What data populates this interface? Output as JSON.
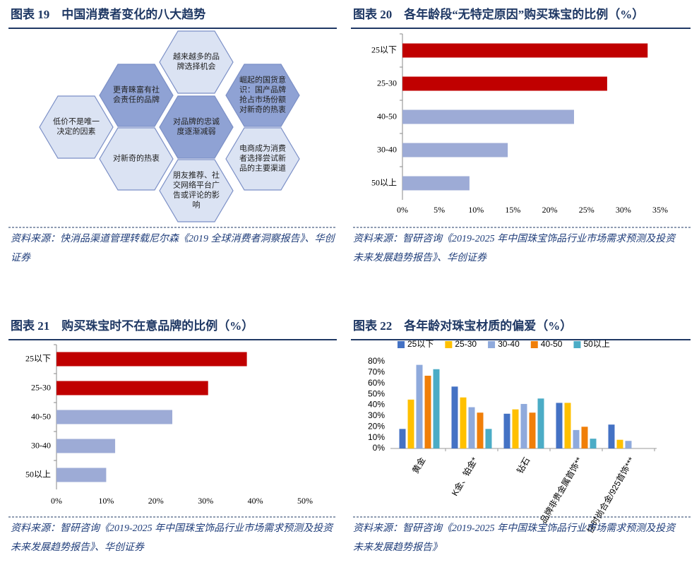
{
  "figure19": {
    "title": "图表 19　中国消费者变化的八大趋势",
    "nodes": [
      {
        "lines": [
          "越来越多的品",
          "牌选择机会"
        ]
      },
      {
        "lines": [
          "更青睐富有社",
          "会责任的品牌"
        ]
      },
      {
        "lines": [
          "崛起的国货意",
          "识：国产品牌",
          "抢占市场份额",
          "对新奇的热衷"
        ]
      },
      {
        "lines": [
          "低价不是唯一",
          "决定的因素"
        ]
      },
      {
        "lines": [
          "对品牌的忠诚",
          "度逐渐减弱"
        ]
      },
      {
        "lines": [
          "对新奇的热衷"
        ]
      },
      {
        "lines": [
          "电商成为消费",
          "者选择尝试新",
          "品的主要渠道"
        ]
      },
      {
        "lines": [
          "朋友推荐、社",
          "交网络平台广",
          "告或评论的影",
          "响"
        ]
      }
    ],
    "source": "资料来源：快消品渠道管理转载尼尔森《2019  全球消费者洞察报告》、华创证券"
  },
  "chart_data": [
    {
      "type": "bar",
      "orientation": "horizontal",
      "title": "图表 20　各年龄段“无特定原因”购买珠宝的比例（%）",
      "categories": [
        "25以下",
        "25-30",
        "40-50",
        "30-40",
        "50以上"
      ],
      "values": [
        33.3,
        27.8,
        23.3,
        14.3,
        9.1
      ],
      "colors": [
        "#c00000",
        "#c00000",
        "#9dabd6",
        "#9dabd6",
        "#9dabd6"
      ],
      "xlim": [
        0,
        35
      ],
      "xticks": [
        {
          "value": 0,
          "label": "0%"
        },
        {
          "value": 5,
          "label": "5%"
        },
        {
          "value": 10,
          "label": "10%"
        },
        {
          "value": 15,
          "label": "15%"
        },
        {
          "value": 20,
          "label": "20%"
        },
        {
          "value": 25,
          "label": "25%"
        },
        {
          "value": 30,
          "label": "30%"
        },
        {
          "value": 35,
          "label": "35%"
        }
      ],
      "source": "资料来源：智研咨询《2019-2025 年中国珠宝饰品行业市场需求预测及投资未来发展趋势报告》、华创证券"
    },
    {
      "type": "bar",
      "orientation": "horizontal",
      "title": "图表 21　购买珠宝时不在意品牌的比例（%）",
      "categories": [
        "25以下",
        "25-30",
        "40-50",
        "30-40",
        "50以上"
      ],
      "values": [
        38.3,
        30.5,
        23.3,
        11.8,
        10.0
      ],
      "colors": [
        "#c00000",
        "#c00000",
        "#9dabd6",
        "#9dabd6",
        "#9dabd6"
      ],
      "xlim": [
        0,
        50
      ],
      "xticks": [
        {
          "value": 0,
          "label": "0%"
        },
        {
          "value": 10,
          "label": "10%"
        },
        {
          "value": 20,
          "label": "20%"
        },
        {
          "value": 30,
          "label": "30%"
        },
        {
          "value": 40,
          "label": "40%"
        },
        {
          "value": 50,
          "label": "50%"
        }
      ],
      "source": "资料来源：智研咨询《2019-2025 年中国珠宝饰品行业市场需求预测及投资未来发展趋势报告》、华创证券"
    },
    {
      "type": "bar",
      "orientation": "vertical",
      "title": "图表 22　各年龄对珠宝材质的偏爱（%）",
      "categories": [
        "黄金",
        "K金、铂金*",
        "钻石",
        "品牌非贵金属首饰**",
        "快时尚合金/925首饰***"
      ],
      "series": [
        {
          "name": "25以下",
          "color": "#4472c4",
          "values": [
            18,
            57,
            32,
            42,
            22
          ]
        },
        {
          "name": "25-30",
          "color": "#ffc000",
          "values": [
            45,
            47,
            36,
            42,
            8
          ]
        },
        {
          "name": "30-40",
          "color": "#8faadc",
          "values": [
            77,
            38,
            41,
            17,
            7
          ]
        },
        {
          "name": "40-50",
          "color": "#f07f09",
          "values": [
            67,
            33,
            33,
            20,
            null
          ]
        },
        {
          "name": "50以上",
          "color": "#4bacc6",
          "values": [
            73,
            18,
            46,
            9,
            null
          ]
        }
      ],
      "ylim": [
        0,
        80
      ],
      "yticks": [
        {
          "value": 0,
          "label": "0%"
        },
        {
          "value": 10,
          "label": "10%"
        },
        {
          "value": 20,
          "label": "20%"
        },
        {
          "value": 30,
          "label": "30%"
        },
        {
          "value": 40,
          "label": "40%"
        },
        {
          "value": 50,
          "label": "50%"
        },
        {
          "value": 60,
          "label": "60%"
        },
        {
          "value": 70,
          "label": "70%"
        },
        {
          "value": 80,
          "label": "80%"
        }
      ],
      "legend": "top",
      "source": "资料来源：智研咨询《2019-2025 年中国珠宝饰品行业市场需求预测及投资未来发展趋势报告》"
    }
  ]
}
